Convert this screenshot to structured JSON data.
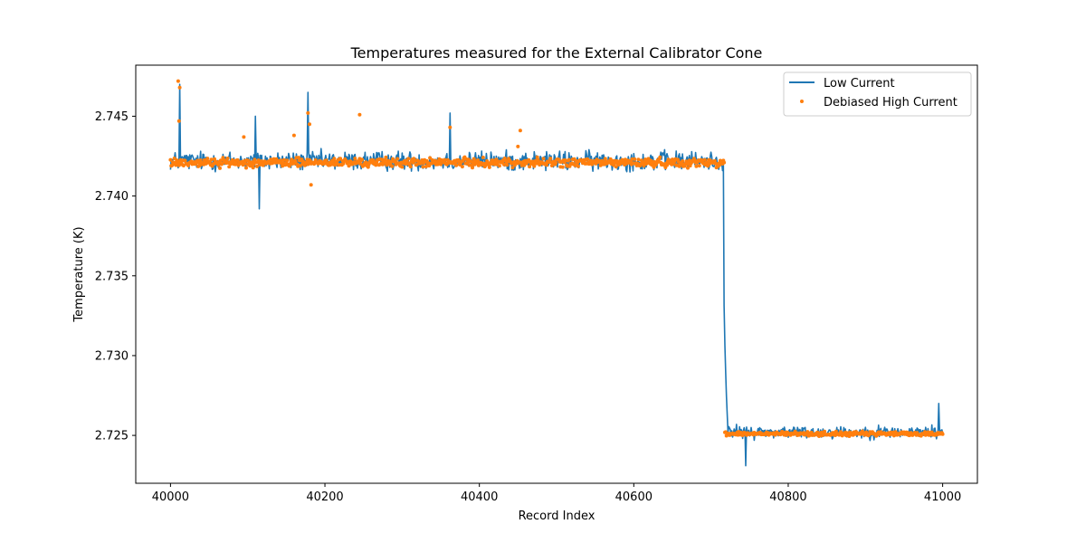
{
  "chart_data": {
    "type": "line+scatter",
    "title": "Temperatures measured for the External Calibrator Cone",
    "xlabel": "Record Index",
    "ylabel": "Temperature (K)",
    "xlim": [
      39955,
      41045
    ],
    "ylim": [
      2.722,
      2.7482
    ],
    "x_ticks": [
      40000,
      40200,
      40400,
      40600,
      40800,
      41000
    ],
    "x_tick_labels": [
      "40000",
      "40200",
      "40400",
      "40600",
      "40800",
      "41000"
    ],
    "y_ticks": [
      2.725,
      2.73,
      2.735,
      2.74,
      2.745
    ],
    "y_tick_labels": [
      "2.725",
      "2.730",
      "2.735",
      "2.740",
      "2.745"
    ],
    "legend": {
      "placement": "top-right",
      "entries": [
        "Low Current",
        "Debiased High Current"
      ]
    },
    "colors": {
      "low_current": "#1f77b4",
      "debiased_high": "#ff7f0e"
    },
    "series": [
      {
        "name": "Low Current",
        "kind": "line",
        "x_start": 40000,
        "x_end": 41000,
        "level_before": 2.7422,
        "level_after": 2.7252,
        "noise_before": 0.0009,
        "noise_after": 0.0006,
        "transition": [
          40716,
          40722
        ],
        "spikes": [
          {
            "x": 40012,
            "y": 2.747
          },
          {
            "x": 40110,
            "y": 2.745
          },
          {
            "x": 40115,
            "y": 2.7392
          },
          {
            "x": 40178,
            "y": 2.7465
          },
          {
            "x": 40362,
            "y": 2.7452
          },
          {
            "x": 40745,
            "y": 2.7231
          },
          {
            "x": 40995,
            "y": 2.727
          }
        ]
      },
      {
        "name": "Debiased High Current",
        "kind": "scatter",
        "x_start": 40000,
        "x_end": 41000,
        "level_before": 2.7421,
        "level_after": 2.7251,
        "noise_before": 0.0004,
        "noise_after": 0.0002,
        "outliers": [
          {
            "x": 40010,
            "y": 2.7472
          },
          {
            "x": 40012,
            "y": 2.7468
          },
          {
            "x": 40011,
            "y": 2.7447
          },
          {
            "x": 40095,
            "y": 2.7437
          },
          {
            "x": 40160,
            "y": 2.7438
          },
          {
            "x": 40178,
            "y": 2.7452
          },
          {
            "x": 40180,
            "y": 2.7445
          },
          {
            "x": 40182,
            "y": 2.7407
          },
          {
            "x": 40245,
            "y": 2.7451
          },
          {
            "x": 40362,
            "y": 2.7443
          },
          {
            "x": 40453,
            "y": 2.7441
          },
          {
            "x": 40450,
            "y": 2.7431
          }
        ]
      }
    ]
  }
}
